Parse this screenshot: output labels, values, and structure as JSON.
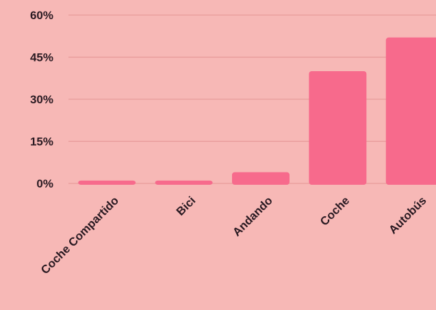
{
  "chart_data": {
    "type": "bar",
    "categories": [
      "Coche Compartido",
      "Bici",
      "Andando",
      "Coche",
      "Autobús"
    ],
    "values": [
      1,
      1,
      4,
      40,
      52
    ],
    "y_ticks": [
      "0%",
      "15%",
      "30%",
      "45%",
      "60%"
    ],
    "y_tick_values": [
      0,
      15,
      30,
      45,
      60
    ],
    "ylim": [
      0,
      60
    ],
    "grid": true,
    "legend": "none",
    "colors": {
      "background": "#f7b8b6",
      "bar": "#f76a8c",
      "grid": "#e79a9a",
      "text": "#2a1a22"
    }
  }
}
